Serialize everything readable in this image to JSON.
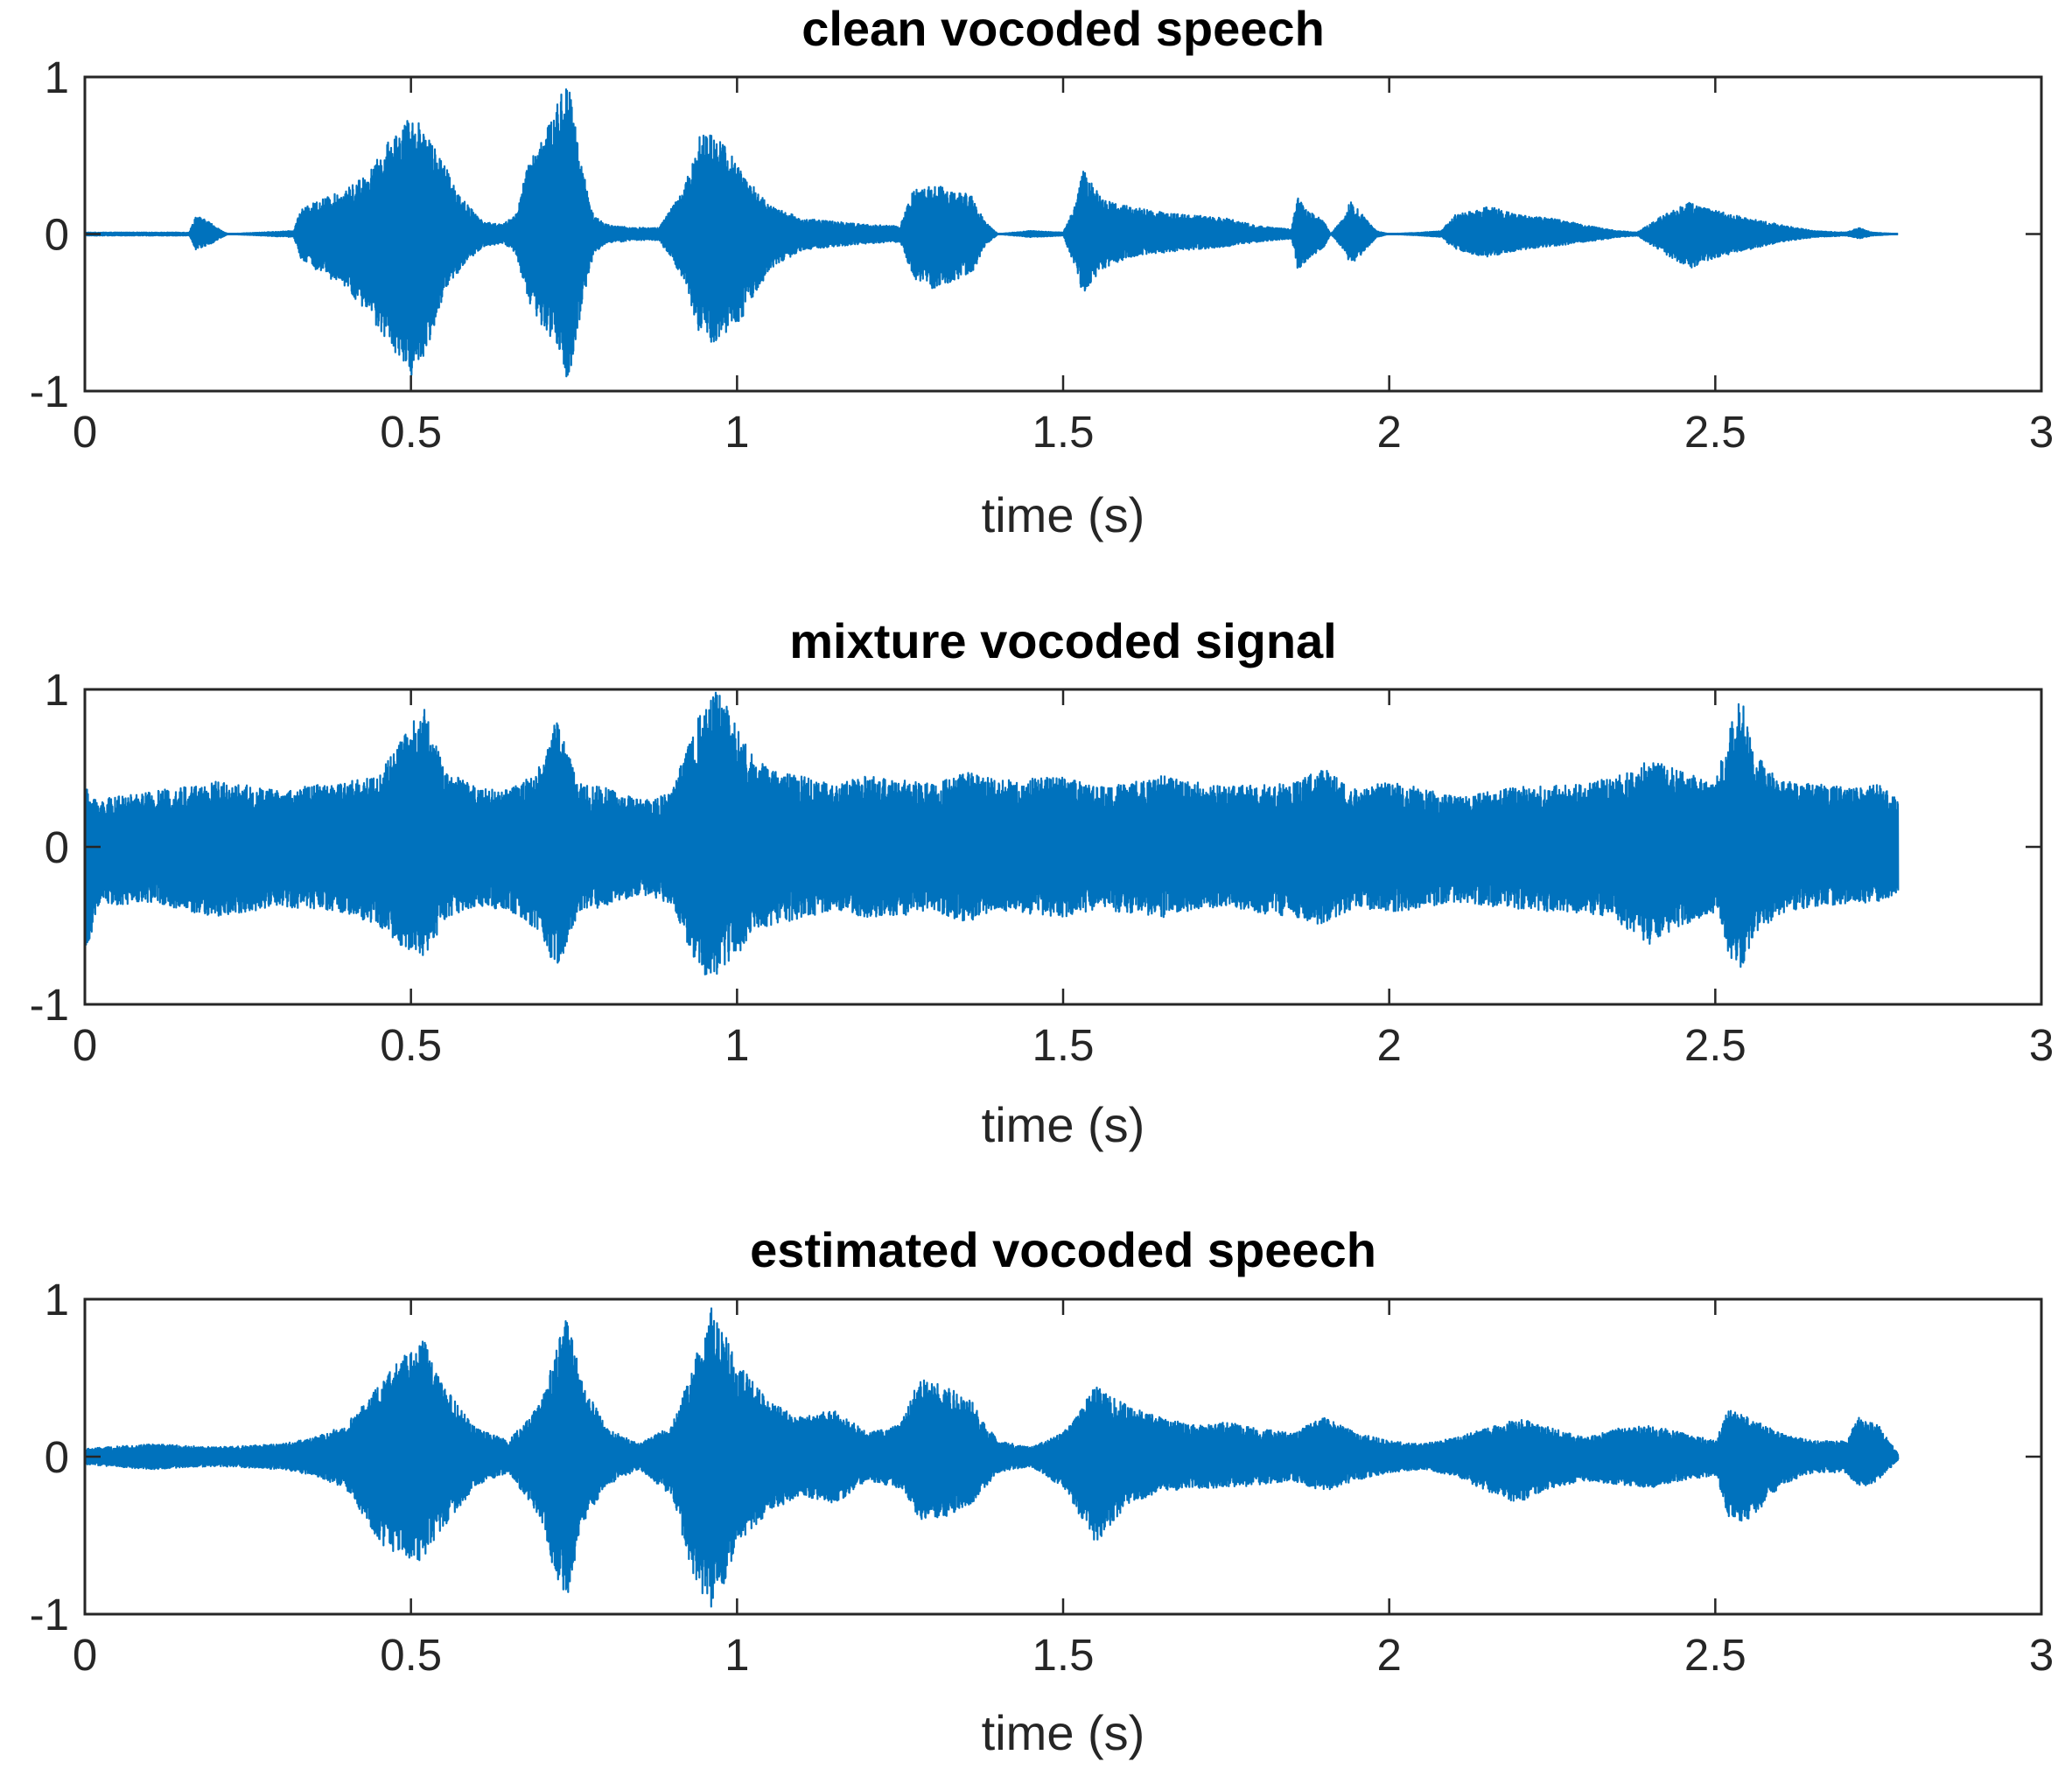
{
  "colors": {
    "signal": "#0072BD",
    "axes": "#262626",
    "background": "#ffffff"
  },
  "chart_data": [
    {
      "type": "line",
      "title": "clean vocoded speech",
      "xlabel": "time (s)",
      "ylabel": "",
      "xlim": [
        0,
        3
      ],
      "ylim": [
        -1,
        1
      ],
      "xticks": [
        0,
        0.5,
        1,
        1.5,
        2,
        2.5,
        3
      ],
      "yticks": [
        -1,
        0,
        1
      ],
      "xtick_labels": [
        "0",
        "0.5",
        "1",
        "1.5",
        "2",
        "2.5",
        "3"
      ],
      "ytick_labels": [
        "-1",
        "0",
        "1"
      ],
      "grid": false,
      "legend": "none",
      "signal_end_s": 2.78,
      "series": [
        {
          "envelope": {
            "x": [
              0,
              0.16,
              0.17,
              0.19,
              0.21,
              0.22,
              0.32,
              0.33,
              0.36,
              0.4,
              0.44,
              0.47,
              0.5,
              0.52,
              0.55,
              0.58,
              0.61,
              0.64,
              0.66,
              0.68,
              0.7,
              0.72,
              0.74,
              0.76,
              0.78,
              0.8,
              0.84,
              0.88,
              0.92,
              0.94,
              0.96,
              0.98,
              1.01,
              1.05,
              1.1,
              1.15,
              1.2,
              1.25,
              1.27,
              1.3,
              1.33,
              1.36,
              1.38,
              1.4,
              1.45,
              1.5,
              1.52,
              1.53,
              1.56,
              1.6,
              1.65,
              1.7,
              1.75,
              1.8,
              1.85,
              1.86,
              1.87,
              1.9,
              1.91,
              1.93,
              1.94,
              1.96,
              1.98,
              2.0,
              2.05,
              2.08,
              2.1,
              2.15,
              2.2,
              2.25,
              2.32,
              2.35,
              2.38,
              2.42,
              2.46,
              2.5,
              2.55,
              2.6,
              2.65,
              2.7,
              2.72,
              2.74,
              2.78
            ],
            "upper": [
              0.01,
              0.01,
              0.12,
              0.08,
              0.02,
              0.0,
              0.02,
              0.15,
              0.22,
              0.28,
              0.42,
              0.62,
              0.75,
              0.7,
              0.45,
              0.22,
              0.08,
              0.06,
              0.12,
              0.45,
              0.62,
              0.8,
              1.0,
              0.48,
              0.12,
              0.06,
              0.04,
              0.04,
              0.3,
              0.62,
              0.68,
              0.58,
              0.38,
              0.18,
              0.1,
              0.08,
              0.06,
              0.05,
              0.28,
              0.32,
              0.28,
              0.25,
              0.08,
              0.0,
              0.02,
              0.01,
              0.2,
              0.42,
              0.22,
              0.18,
              0.14,
              0.12,
              0.1,
              0.05,
              0.03,
              0.25,
              0.18,
              0.08,
              0.0,
              0.1,
              0.22,
              0.12,
              0.02,
              0.0,
              0.01,
              0.02,
              0.12,
              0.18,
              0.12,
              0.1,
              0.04,
              0.02,
              0.01,
              0.12,
              0.2,
              0.15,
              0.1,
              0.06,
              0.02,
              0.01,
              0.04,
              0.01,
              0.0
            ],
            "lower": [
              -0.01,
              -0.01,
              -0.1,
              -0.07,
              -0.02,
              0.0,
              -0.02,
              -0.15,
              -0.25,
              -0.35,
              -0.55,
              -0.72,
              -0.9,
              -0.78,
              -0.4,
              -0.2,
              -0.08,
              -0.06,
              -0.12,
              -0.45,
              -0.58,
              -0.7,
              -0.97,
              -0.5,
              -0.12,
              -0.06,
              -0.04,
              -0.04,
              -0.3,
              -0.62,
              -0.72,
              -0.65,
              -0.52,
              -0.22,
              -0.1,
              -0.08,
              -0.06,
              -0.05,
              -0.28,
              -0.35,
              -0.3,
              -0.25,
              -0.08,
              0.0,
              -0.02,
              -0.01,
              -0.25,
              -0.38,
              -0.22,
              -0.15,
              -0.12,
              -0.1,
              -0.08,
              -0.05,
              -0.03,
              -0.24,
              -0.18,
              -0.08,
              0.0,
              -0.1,
              -0.2,
              -0.12,
              -0.02,
              0.0,
              -0.01,
              -0.02,
              -0.1,
              -0.15,
              -0.1,
              -0.08,
              -0.04,
              -0.02,
              -0.01,
              -0.12,
              -0.22,
              -0.15,
              -0.1,
              -0.05,
              -0.02,
              -0.01,
              -0.03,
              -0.01,
              0.0
            ]
          }
        }
      ]
    },
    {
      "type": "line",
      "title": "mixture vocoded signal",
      "xlabel": "time (s)",
      "ylabel": "",
      "xlim": [
        0,
        3
      ],
      "ylim": [
        -1,
        1
      ],
      "xticks": [
        0,
        0.5,
        1,
        1.5,
        2,
        2.5,
        3
      ],
      "yticks": [
        -1,
        0,
        1
      ],
      "xtick_labels": [
        "0",
        "0.5",
        "1",
        "1.5",
        "2",
        "2.5",
        "3"
      ],
      "ytick_labels": [
        "-1",
        "0",
        "1"
      ],
      "grid": false,
      "legend": "none",
      "signal_end_s": 2.78,
      "series": [
        {
          "envelope": {
            "x": [
              0,
              0.02,
              0.1,
              0.2,
              0.3,
              0.4,
              0.45,
              0.48,
              0.52,
              0.55,
              0.6,
              0.65,
              0.7,
              0.72,
              0.74,
              0.76,
              0.8,
              0.85,
              0.9,
              0.93,
              0.96,
              0.98,
              1.0,
              1.02,
              1.05,
              1.1,
              1.15,
              1.2,
              1.3,
              1.35,
              1.4,
              1.5,
              1.55,
              1.6,
              1.65,
              1.7,
              1.75,
              1.8,
              1.85,
              1.9,
              1.95,
              2.0,
              2.1,
              2.2,
              2.3,
              2.35,
              2.4,
              2.45,
              2.5,
              2.52,
              2.54,
              2.56,
              2.6,
              2.65,
              2.7,
              2.75,
              2.78
            ],
            "upper": [
              0.38,
              0.3,
              0.35,
              0.42,
              0.36,
              0.42,
              0.46,
              0.65,
              0.92,
              0.5,
              0.38,
              0.36,
              0.52,
              0.85,
              0.62,
              0.4,
              0.38,
              0.3,
              0.34,
              0.72,
              1.0,
              0.95,
              0.75,
              0.6,
              0.5,
              0.45,
              0.4,
              0.45,
              0.4,
              0.48,
              0.42,
              0.45,
              0.38,
              0.4,
              0.46,
              0.42,
              0.38,
              0.4,
              0.4,
              0.5,
              0.36,
              0.42,
              0.32,
              0.38,
              0.4,
              0.45,
              0.55,
              0.48,
              0.4,
              0.75,
              0.95,
              0.6,
              0.42,
              0.4,
              0.38,
              0.4,
              0.3
            ],
            "lower": [
              -0.7,
              -0.38,
              -0.35,
              -0.45,
              -0.38,
              -0.42,
              -0.5,
              -0.62,
              -0.7,
              -0.48,
              -0.38,
              -0.4,
              -0.55,
              -0.82,
              -0.6,
              -0.4,
              -0.38,
              -0.3,
              -0.36,
              -0.68,
              -0.88,
              -0.75,
              -0.7,
              -0.55,
              -0.5,
              -0.45,
              -0.4,
              -0.45,
              -0.42,
              -0.48,
              -0.4,
              -0.45,
              -0.4,
              -0.42,
              -0.45,
              -0.4,
              -0.38,
              -0.42,
              -0.44,
              -0.5,
              -0.38,
              -0.42,
              -0.35,
              -0.4,
              -0.42,
              -0.48,
              -0.62,
              -0.5,
              -0.42,
              -0.7,
              -0.78,
              -0.55,
              -0.42,
              -0.38,
              -0.36,
              -0.35,
              -0.3
            ]
          }
        }
      ]
    },
    {
      "type": "line",
      "title": "estimated vocoded speech",
      "xlabel": "time (s)",
      "ylabel": "",
      "xlim": [
        0,
        3
      ],
      "ylim": [
        -1,
        1
      ],
      "xticks": [
        0,
        0.5,
        1,
        1.5,
        2,
        2.5,
        3
      ],
      "yticks": [
        -1,
        0,
        1
      ],
      "xtick_labels": [
        "0",
        "0.5",
        "1",
        "1.5",
        "2",
        "2.5",
        "3"
      ],
      "ytick_labels": [
        "-1",
        "0",
        "1"
      ],
      "grid": false,
      "legend": "none",
      "signal_end_s": 2.78,
      "series": [
        {
          "envelope": {
            "x": [
              0,
              0.1,
              0.2,
              0.3,
              0.35,
              0.4,
              0.45,
              0.5,
              0.52,
              0.55,
              0.6,
              0.65,
              0.7,
              0.72,
              0.74,
              0.76,
              0.8,
              0.85,
              0.9,
              0.93,
              0.96,
              0.98,
              1.0,
              1.05,
              1.1,
              1.15,
              1.2,
              1.25,
              1.28,
              1.32,
              1.36,
              1.4,
              1.45,
              1.5,
              1.55,
              1.6,
              1.65,
              1.7,
              1.75,
              1.8,
              1.85,
              1.9,
              1.95,
              2.0,
              2.05,
              2.1,
              2.15,
              2.2,
              2.25,
              2.3,
              2.35,
              2.4,
              2.45,
              2.5,
              2.52,
              2.55,
              2.6,
              2.65,
              2.7,
              2.72,
              2.75,
              2.78
            ],
            "upper": [
              0.05,
              0.08,
              0.06,
              0.08,
              0.12,
              0.2,
              0.45,
              0.7,
              0.75,
              0.45,
              0.18,
              0.1,
              0.35,
              0.65,
              0.92,
              0.5,
              0.18,
              0.08,
              0.2,
              0.55,
              0.95,
              0.8,
              0.6,
              0.35,
              0.25,
              0.3,
              0.15,
              0.2,
              0.5,
              0.45,
              0.35,
              0.1,
              0.06,
              0.15,
              0.45,
              0.32,
              0.25,
              0.2,
              0.22,
              0.18,
              0.15,
              0.25,
              0.15,
              0.1,
              0.08,
              0.12,
              0.18,
              0.25,
              0.18,
              0.12,
              0.18,
              0.2,
              0.15,
              0.1,
              0.3,
              0.25,
              0.15,
              0.1,
              0.1,
              0.25,
              0.2,
              0.02
            ],
            "lower": [
              -0.05,
              -0.08,
              -0.06,
              -0.08,
              -0.12,
              -0.2,
              -0.55,
              -0.68,
              -0.65,
              -0.45,
              -0.18,
              -0.1,
              -0.4,
              -0.75,
              -0.9,
              -0.45,
              -0.18,
              -0.08,
              -0.25,
              -0.72,
              -1.0,
              -0.8,
              -0.55,
              -0.35,
              -0.25,
              -0.3,
              -0.15,
              -0.2,
              -0.4,
              -0.38,
              -0.3,
              -0.1,
              -0.06,
              -0.2,
              -0.55,
              -0.3,
              -0.22,
              -0.2,
              -0.2,
              -0.18,
              -0.15,
              -0.22,
              -0.15,
              -0.1,
              -0.08,
              -0.12,
              -0.22,
              -0.3,
              -0.2,
              -0.15,
              -0.18,
              -0.2,
              -0.15,
              -0.12,
              -0.38,
              -0.42,
              -0.18,
              -0.1,
              -0.1,
              -0.2,
              -0.15,
              -0.02
            ]
          }
        }
      ]
    }
  ]
}
